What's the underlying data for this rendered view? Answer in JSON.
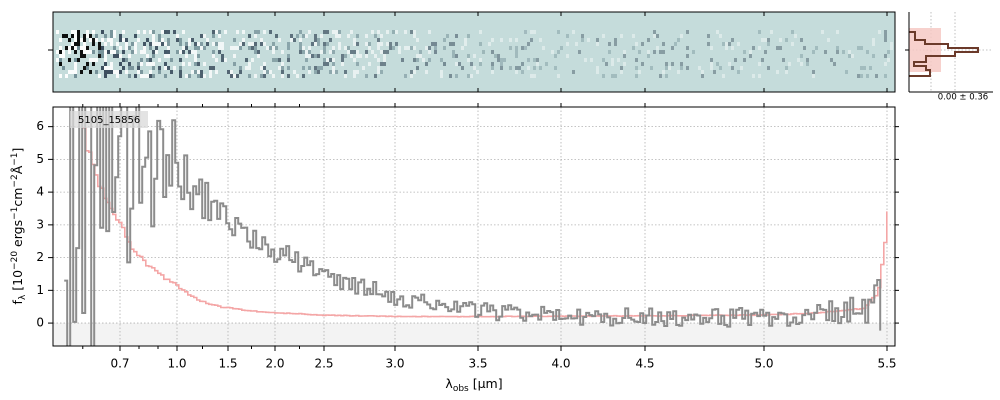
{
  "chart_data": {
    "type": "line",
    "label": "5105_15856",
    "ylabel_parts": [
      "f",
      "λ",
      " [10",
      "−20",
      " ergs",
      "−1",
      "cm",
      "−2",
      "Å",
      "−1",
      "]"
    ],
    "xlabel_parts": [
      "λ",
      "obs",
      " [μm]"
    ],
    "ylim": [
      -0.7,
      6.6
    ],
    "y_ticks": [
      0,
      1,
      2,
      3,
      4,
      5,
      6
    ],
    "x_ticks": [
      0.7,
      1.0,
      1.5,
      2.0,
      2.5,
      3.0,
      3.5,
      4.0,
      4.5,
      5.0,
      5.5
    ],
    "x_tick_labels": [
      "0.7",
      "1.0",
      "1.5",
      "2.0",
      "2.5",
      "3.0",
      "3.5",
      "4.0",
      "4.5",
      "5.0",
      "5.5"
    ],
    "x_minor_ticks": [
      0.6,
      0.8,
      0.9,
      1.25,
      1.75,
      2.25
    ],
    "xlim": [
      0.52,
      5.52
    ],
    "series": [
      {
        "role": "flux",
        "color": "#8c8c8c",
        "x": [
          0.55,
          0.6,
          0.65,
          0.7,
          0.75,
          0.8,
          0.9,
          1.0,
          1.1,
          1.2,
          1.3,
          1.4,
          1.5,
          1.6,
          1.7,
          1.8,
          1.9,
          2.0,
          2.2,
          2.4,
          2.6,
          2.8,
          3.0,
          3.2,
          3.4,
          3.6,
          3.8,
          4.0,
          4.2,
          4.4,
          4.6,
          4.8,
          5.0,
          5.2,
          5.4,
          5.48
        ],
        "y": [
          2.5,
          4.5,
          5.5,
          5.6,
          5.2,
          5.0,
          4.6,
          4.5,
          4.2,
          4.0,
          3.7,
          3.4,
          3.1,
          2.9,
          2.7,
          2.5,
          2.3,
          2.2,
          1.9,
          1.6,
          1.3,
          1.05,
          0.8,
          0.6,
          0.45,
          0.35,
          0.3,
          0.25,
          0.2,
          0.2,
          0.18,
          0.18,
          0.2,
          0.25,
          0.45,
          0.5
        ]
      },
      {
        "role": "uncertainty",
        "color": "#f4a6a6",
        "x": [
          0.6,
          0.65,
          0.7,
          0.75,
          0.8,
          0.9,
          1.0,
          1.2,
          1.4,
          1.6,
          1.8,
          2.0,
          2.5,
          3.0,
          3.5,
          4.0,
          4.5,
          5.0,
          5.2,
          5.4,
          5.46,
          5.48,
          5.5
        ],
        "y": [
          5.8,
          4.0,
          3.0,
          2.4,
          2.0,
          1.5,
          1.1,
          0.7,
          0.5,
          0.42,
          0.36,
          0.32,
          0.24,
          0.2,
          0.2,
          0.21,
          0.22,
          0.25,
          0.3,
          0.45,
          0.9,
          2.0,
          3.4
        ]
      }
    ],
    "colors": {
      "image_bg": "#c5dcdb",
      "flux": "#8c8c8c",
      "uncertainty": "#f4a6a6",
      "hist": "#6b3a2a",
      "hist_fill": "#f6c9c4",
      "grid": "#b0b0b0"
    },
    "hist_panel": {
      "annotation": "0.00 ± 0.36"
    }
  }
}
